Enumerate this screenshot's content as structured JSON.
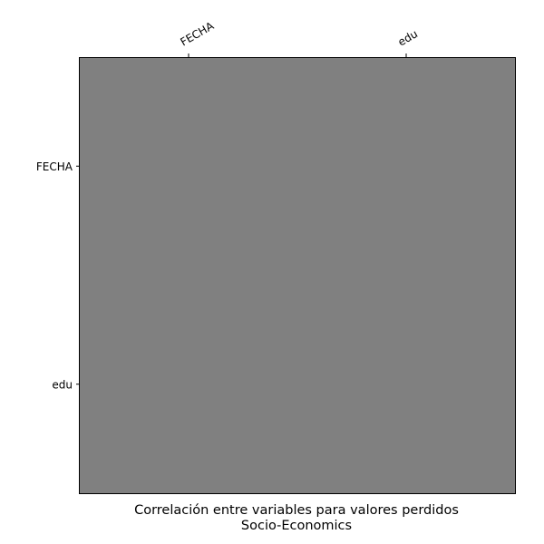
{
  "chart_data": {
    "type": "heatmap",
    "title": "Correlación entre variables para valores perdidos",
    "subtitle": "Socio-Economics",
    "x_categories": [
      "FECHA",
      "edu"
    ],
    "y_categories": [
      "FECHA",
      "edu"
    ],
    "values": [
      [
        null,
        null
      ],
      [
        null,
        null
      ]
    ],
    "cell_color": "#808080",
    "x_tick_position": "top",
    "x_tick_rotation": 30,
    "grid": false,
    "colorbar": false
  }
}
